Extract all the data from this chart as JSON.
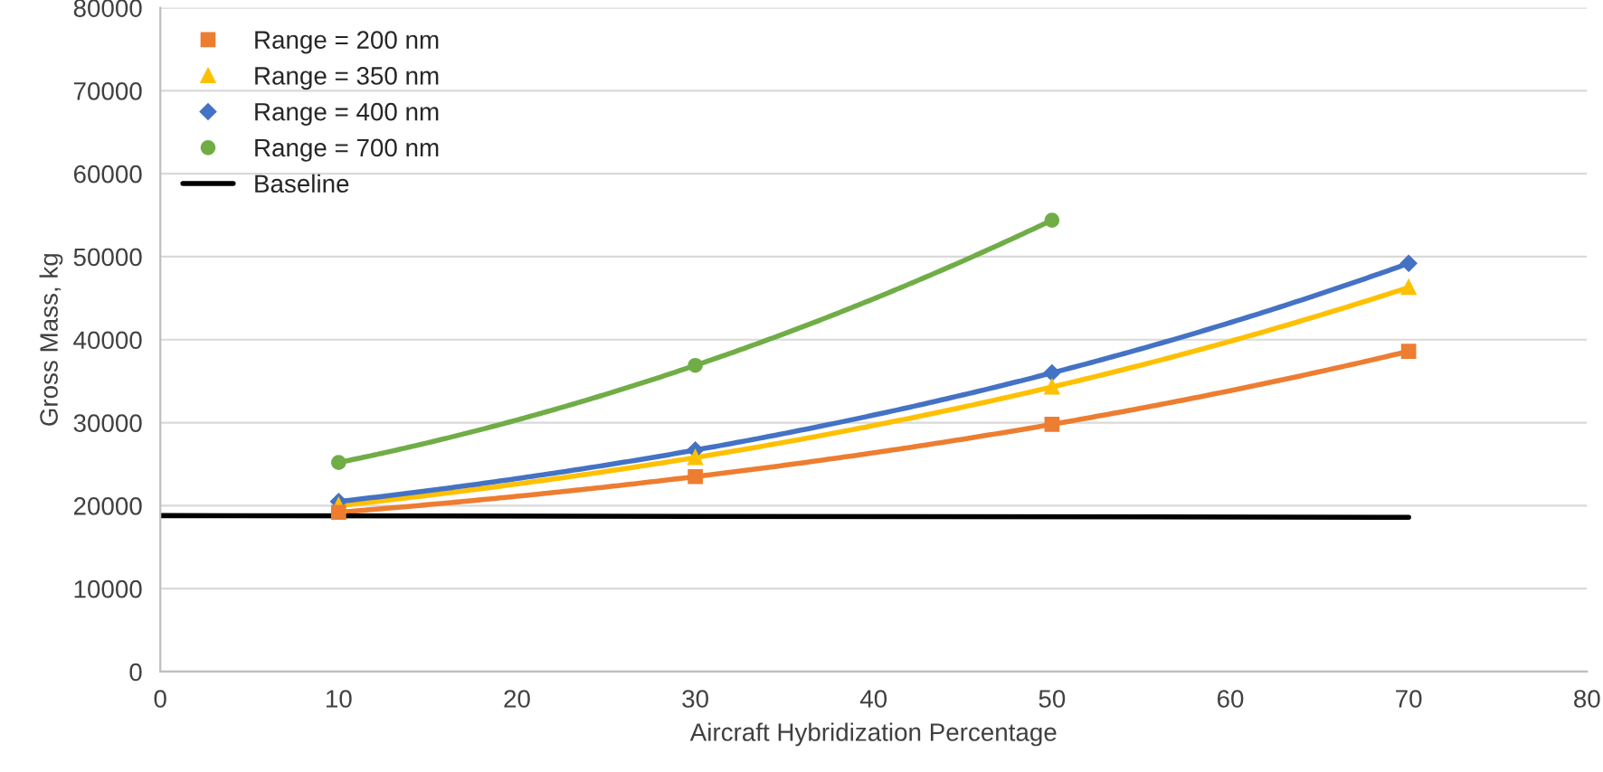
{
  "chart_data": {
    "type": "line",
    "xlabel": "Aircraft Hybridization Percentage",
    "ylabel": "Gross Mass, kg",
    "xlim": [
      0,
      80
    ],
    "xticks": [
      0,
      10,
      20,
      30,
      40,
      50,
      60,
      70,
      80
    ],
    "ylim": [
      0,
      80000
    ],
    "yticks": [
      0,
      10000,
      20000,
      30000,
      40000,
      50000,
      60000,
      70000,
      80000
    ],
    "grid": "y",
    "legend": "top left",
    "series": [
      {
        "name": "Range = 200 nm",
        "color": "#ed7d31",
        "marker": "square",
        "x": [
          10,
          30,
          50,
          70
        ],
        "values": [
          19200,
          23500,
          29800,
          38600
        ]
      },
      {
        "name": "Range = 350 nm",
        "color": "#ffc000",
        "marker": "triangle",
        "x": [
          10,
          30,
          50,
          70
        ],
        "values": [
          20000,
          25800,
          34300,
          46300
        ]
      },
      {
        "name": "Range = 400 nm",
        "color": "#4472c4",
        "marker": "diamond",
        "x": [
          10,
          30,
          50,
          70
        ],
        "values": [
          20500,
          26700,
          36000,
          49200
        ]
      },
      {
        "name": "Range = 700 nm",
        "color": "#70ad47",
        "marker": "circle",
        "x": [
          10,
          30,
          50
        ],
        "values": [
          25200,
          36900,
          54400
        ]
      },
      {
        "name": "Baseline",
        "color": "#000000",
        "marker": "none",
        "x": [
          0,
          70
        ],
        "values": [
          18800,
          18600
        ]
      }
    ]
  }
}
